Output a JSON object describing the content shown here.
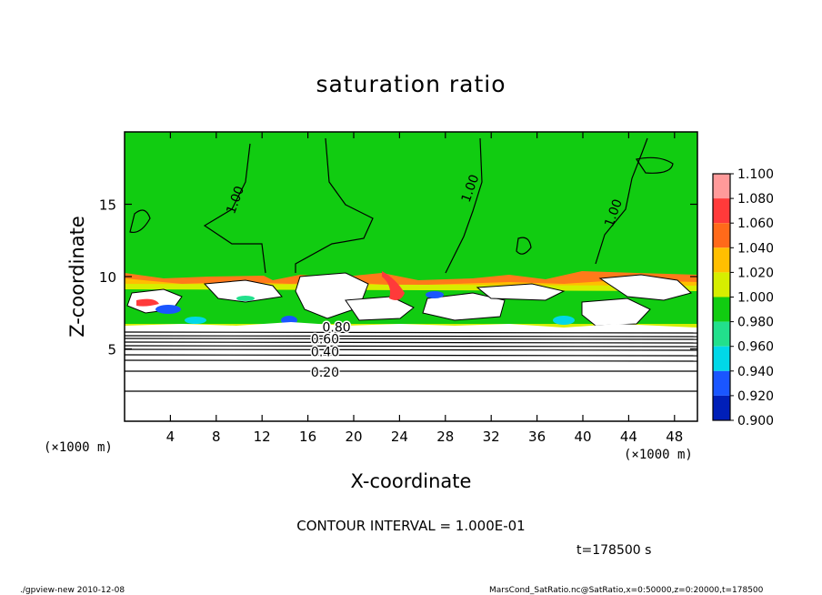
{
  "chart_data": {
    "type": "heatmap",
    "title": "saturation ratio",
    "xlabel": "X-coordinate",
    "ylabel": "Z-coordinate",
    "x_unit": "(×1000 m)",
    "y_unit": "(×1000 m)",
    "xlim": [
      0,
      50
    ],
    "ylim": [
      0,
      20
    ],
    "x_ticks": [
      4,
      8,
      12,
      16,
      20,
      24,
      28,
      32,
      36,
      40,
      44,
      48
    ],
    "y_ticks": [
      5,
      10,
      15
    ],
    "colorbar": {
      "levels": [
        "1.100",
        "1.080",
        "1.060",
        "1.040",
        "1.020",
        "1.000",
        "0.980",
        "0.960",
        "0.940",
        "0.920",
        "0.900"
      ],
      "colors": [
        "#ff9a9a",
        "#ff3a3a",
        "#ff6a1a",
        "#ffbf00",
        "#d6ee00",
        "#11cc11",
        "#22e08c",
        "#00d8e8",
        "#1a56ff",
        "#001fb8",
        "#5b0ba0"
      ]
    },
    "contour_labels": [
      {
        "text": "1.00",
        "x": 10,
        "z": 15.2
      },
      {
        "text": "1.00",
        "x": 30.5,
        "z": 16
      },
      {
        "text": "1.00",
        "x": 43,
        "z": 14.3
      },
      {
        "text": "0.80",
        "x": 18.5,
        "z": 6.5
      },
      {
        "text": "0.60",
        "x": 17.5,
        "z": 5.7
      },
      {
        "text": "0.40",
        "x": 17.5,
        "z": 4.8
      },
      {
        "text": "0.20",
        "x": 17.5,
        "z": 3.4
      }
    ],
    "contour_interval_text": "CONTOUR INTERVAL = 1.000E-01",
    "time_text": "t=178500 s"
  },
  "footer": {
    "left": "./gpview-new  2010-12-08",
    "right": "MarsCond_SatRatio.nc@SatRatio,x=0:50000,z=0:20000,t=178500"
  }
}
